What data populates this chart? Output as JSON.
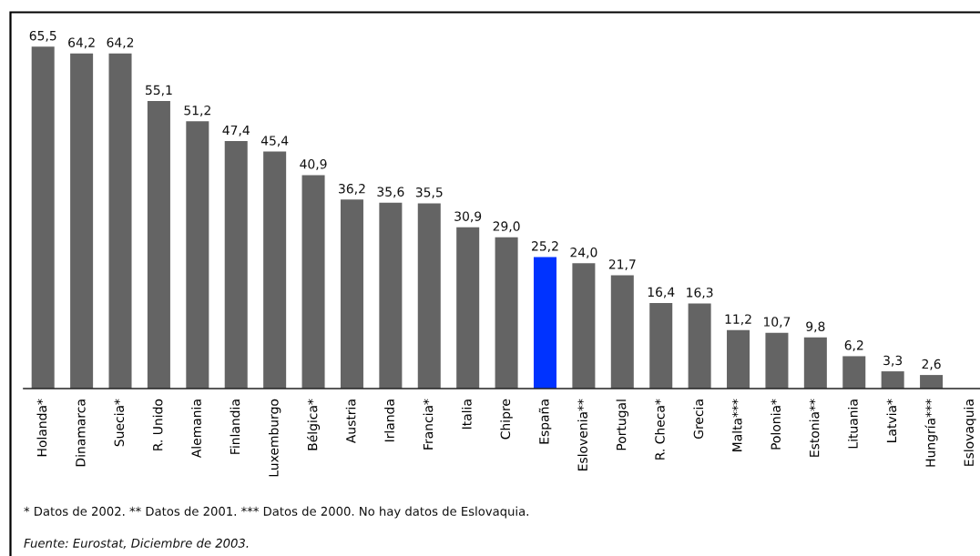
{
  "chart_data": {
    "type": "bar",
    "categories": [
      "Holanda*",
      "Dinamarca",
      "Suecia*",
      "R. Unido",
      "Alemania",
      "Finlandia",
      "Luxemburgo",
      "Bélgica*",
      "Austria",
      "Irlanda",
      "Francia*",
      "Italia",
      "Chipre",
      "España",
      "Eslovenia**",
      "Portugal",
      "R. Checa*",
      "Grecia",
      "Malta***",
      "Polonia*",
      "Estonia**",
      "Lituania",
      "Latvia*",
      "Hungría***",
      "Eslovaquia"
    ],
    "values": [
      65.5,
      64.2,
      64.2,
      55.1,
      51.2,
      47.4,
      45.4,
      40.9,
      36.2,
      35.6,
      35.5,
      30.9,
      29.0,
      25.2,
      24.0,
      21.7,
      16.4,
      16.3,
      11.2,
      10.7,
      9.8,
      6.2,
      3.3,
      2.6,
      null
    ],
    "colors": [
      "#646464",
      "#646464",
      "#646464",
      "#646464",
      "#646464",
      "#646464",
      "#646464",
      "#646464",
      "#646464",
      "#646464",
      "#646464",
      "#646464",
      "#646464",
      "#0033ff",
      "#646464",
      "#646464",
      "#646464",
      "#646464",
      "#646464",
      "#646464",
      "#646464",
      "#646464",
      "#646464",
      "#646464",
      null
    ],
    "value_labels": [
      "65,5",
      "64,2",
      "64,2",
      "55,1",
      "51,2",
      "47,4",
      "45,4",
      "40,9",
      "36,2",
      "35,6",
      "35,5",
      "30,9",
      "29,0",
      "25,2",
      "24,0",
      "21,7",
      "16,4",
      "16,3",
      "11,2",
      "10,7",
      "9,8",
      "6,2",
      "3,3",
      "2,6",
      null
    ],
    "tick_labels": "x",
    "annotations": [
      "* Datos de 2002. ** Datos de 2001. *** Datos de 2000. No hay datos de Eslovaquia.",
      "Fuente: Eurostat, Diciembre de 2003."
    ]
  }
}
